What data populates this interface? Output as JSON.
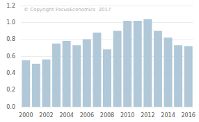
{
  "chart_data": {
    "type": "bar",
    "categories": [
      "2000",
      null,
      "2002",
      null,
      "2004",
      null,
      "2006",
      null,
      "2008",
      null,
      "2010",
      null,
      "2012",
      null,
      "2014",
      null,
      "2016"
    ],
    "values": [
      0.55,
      0.51,
      0.56,
      0.75,
      0.78,
      0.73,
      0.8,
      0.88,
      0.68,
      0.9,
      1.02,
      1.02,
      1.04,
      0.9,
      0.82,
      0.73,
      0.72
    ],
    "color": "#b0c8d8",
    "ylim": [
      0.0,
      1.2
    ],
    "yticks": [
      {
        "value": 0.0,
        "label": "0.0"
      },
      0.2,
      0.4,
      0.6,
      0.8,
      {
        "value": 1.0,
        "label": "1.0"
      },
      1.2
    ],
    "grid": true,
    "annotation": "© Copyright FocusEconomics  2017"
  }
}
